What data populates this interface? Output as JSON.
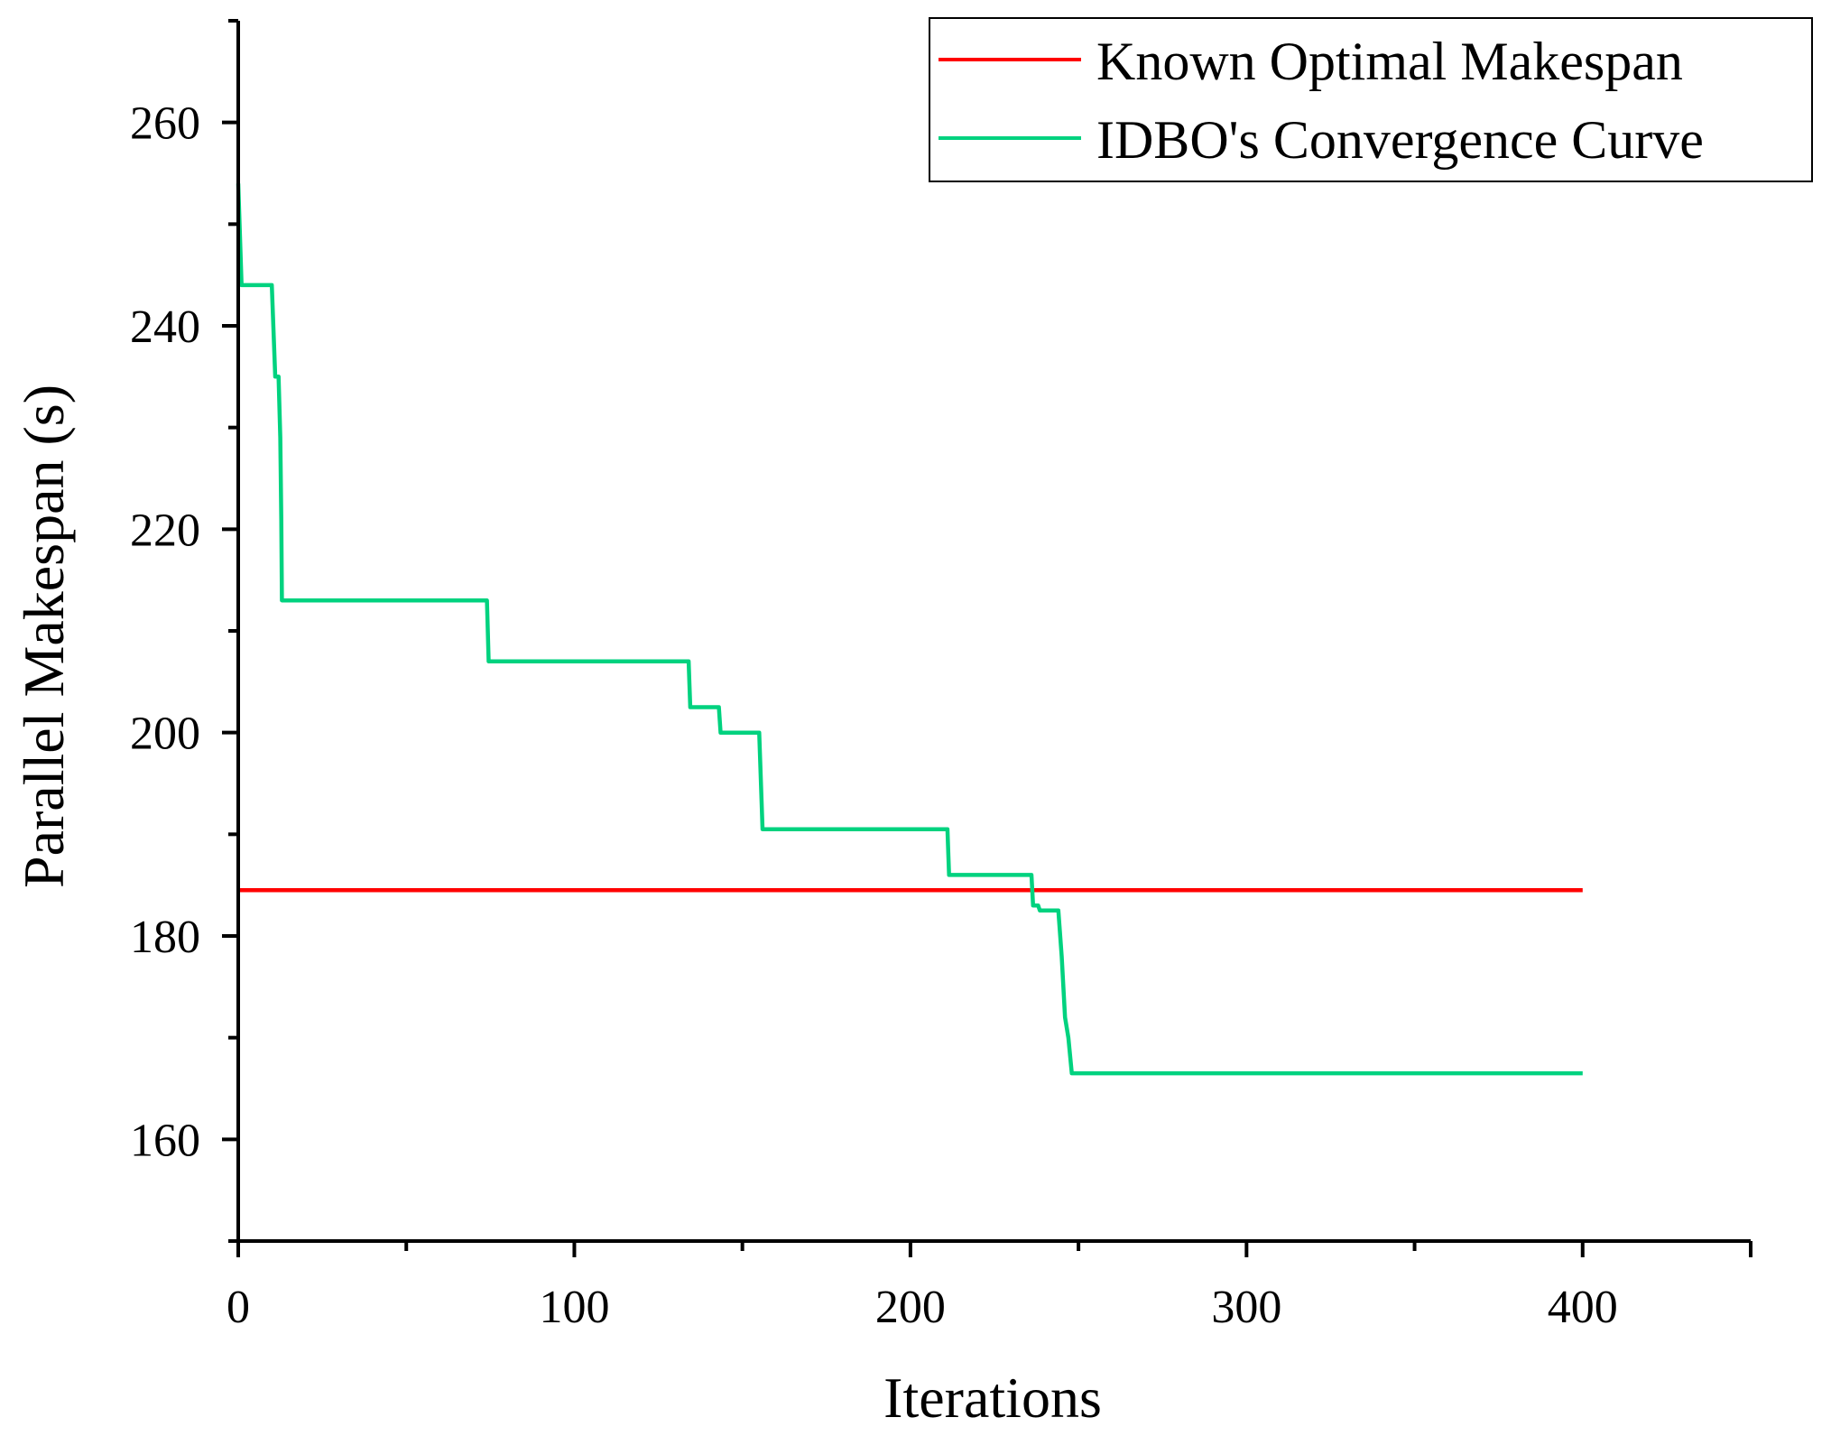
{
  "chart_data": {
    "type": "line",
    "title": "",
    "xlabel": "Iterations",
    "ylabel": "Parallel Makespan (s)",
    "xlim": [
      0,
      450
    ],
    "ylim": [
      150,
      270
    ],
    "x_ticks": [
      0,
      100,
      200,
      300,
      400
    ],
    "x_tick_labels": [
      "0",
      "100",
      "200",
      "300",
      "400"
    ],
    "y_ticks": [
      160,
      180,
      200,
      220,
      240,
      260
    ],
    "y_tick_labels": [
      "160",
      "180",
      "200",
      "220",
      "240",
      "260"
    ],
    "grid": false,
    "legend_position": "top-right",
    "series": [
      {
        "name": "Known Optimal Makespan",
        "color": "#ff0000",
        "x": [
          0,
          400
        ],
        "y": [
          184.5,
          184.5
        ]
      },
      {
        "name": "IDBO's Convergence Curve",
        "color": "#00d27f",
        "x": [
          0,
          1,
          10,
          11,
          12,
          12.5,
          12.8,
          13,
          74,
          74.5,
          134,
          134.5,
          143,
          143.5,
          155,
          156,
          211,
          211.5,
          236,
          236.5,
          238,
          238.5,
          244,
          245,
          246,
          247,
          248,
          400
        ],
        "y": [
          254,
          244,
          244,
          235,
          235,
          229,
          221,
          213,
          213,
          207,
          207,
          202.5,
          202.5,
          200,
          200,
          190.5,
          190.5,
          186,
          186,
          183,
          183,
          182.5,
          182.5,
          178,
          172,
          170,
          166.5,
          166.5
        ]
      }
    ]
  }
}
